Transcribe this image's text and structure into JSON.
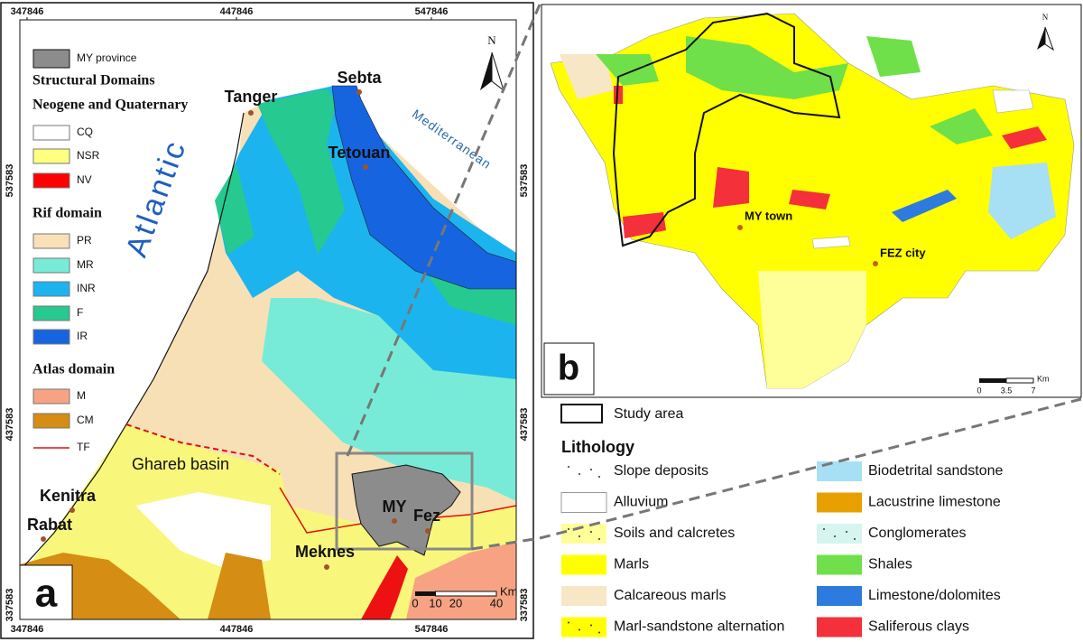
{
  "panel_a": {
    "label": "a",
    "north": "N",
    "coords": {
      "top": [
        "347846",
        "447846",
        "547846"
      ],
      "bottom": [
        "347846",
        "447846",
        "547846"
      ],
      "left": [
        "537583",
        "437583",
        "337583"
      ],
      "right": [
        "537583",
        "437583",
        "337583"
      ]
    },
    "legend": {
      "province": "MY province",
      "title": "Structural Domains",
      "groups": [
        {
          "title": "Neogene and Quaternary",
          "items": [
            "CQ",
            "NSR",
            "NV"
          ]
        },
        {
          "title": "Rif domain",
          "items": [
            "PR",
            "MR",
            "INR",
            "F",
            "IR"
          ]
        },
        {
          "title": "Atlas domain",
          "items": [
            "M",
            "CM",
            "TF"
          ]
        }
      ]
    },
    "places": [
      "Tanger",
      "Sebta",
      "Tetouan",
      "Kenitra",
      "Rabat",
      "MY",
      "Fez",
      "Meknes"
    ],
    "seas": [
      "Atlantic",
      "Mediterranean"
    ],
    "basin": "Ghareb basin",
    "scale": {
      "ticks": [
        "0",
        "10",
        "20",
        "40"
      ],
      "unit": "Km"
    }
  },
  "panel_b": {
    "label": "b",
    "north": "N",
    "places": [
      "MY town",
      "FEZ city"
    ],
    "scale": {
      "ticks": [
        "0",
        "3.5",
        "7"
      ],
      "unit": "Km"
    }
  },
  "legend": {
    "study_area": "Study area",
    "title": "Lithology",
    "items": [
      "Slope deposits",
      "Alluvium",
      "Soils and calcretes",
      "Marls",
      "Calcareous marls",
      "Marl-sandstone alternation",
      "Biodetrital sandstone",
      "Lacustrine limestone",
      "Conglomerates",
      "Shales",
      "Limestone/dolomites",
      "Saliferous clays"
    ]
  }
}
